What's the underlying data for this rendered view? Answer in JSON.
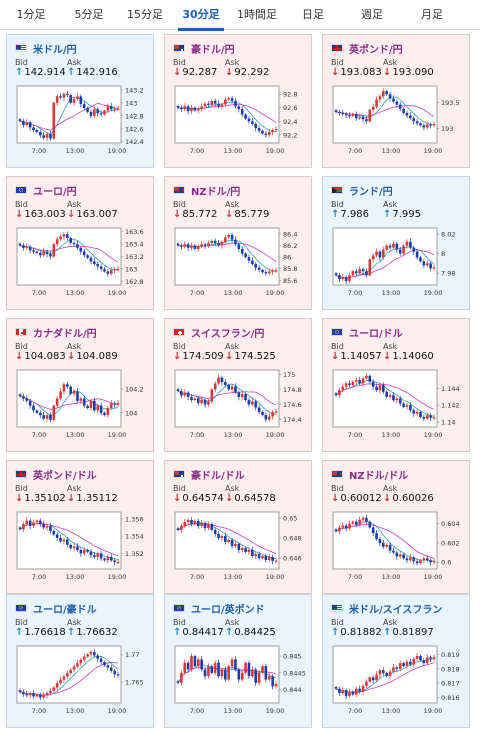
{
  "tabs": [
    {
      "label": "1分足",
      "active": false
    },
    {
      "label": "5分足",
      "active": false
    },
    {
      "label": "15分足",
      "active": false
    },
    {
      "label": "30分足",
      "active": true
    },
    {
      "label": "1時間足",
      "active": false
    },
    {
      "label": "日足",
      "active": false
    },
    {
      "label": "週足",
      "active": false
    },
    {
      "label": "月足",
      "active": false
    }
  ],
  "bid_label": "Bid",
  "ask_label": "Ask",
  "colors": {
    "up_bg": "#eaf4fc",
    "down_bg": "#fdeff0",
    "candle_up": "#d93838",
    "candle_down": "#1c3ca8",
    "ma1": "#30a0c0",
    "ma2": "#d040c8"
  },
  "cards": [
    {
      "pair": "米ドル/円",
      "flag": "us-flag-icon",
      "dir": "up",
      "bid": "142.914",
      "ask": "142.916",
      "chart_data": {
        "type": "candlestick",
        "x_ticks": [
          "7:00",
          "13:00",
          "19:00"
        ],
        "y_ticks": [
          "143.2",
          "143",
          "142.8",
          "142.6",
          "142.4"
        ],
        "ylim": [
          142.38,
          143.26
        ],
        "close": [
          142.72,
          142.66,
          142.7,
          142.62,
          142.58,
          142.55,
          142.5,
          142.46,
          142.52,
          142.45,
          143.0,
          143.1,
          143.08,
          143.14,
          143.12,
          143.0,
          143.06,
          143.1,
          142.98,
          142.92,
          142.86,
          142.8,
          142.9,
          142.84,
          142.82,
          142.88,
          142.95,
          142.9,
          142.91,
          142.914
        ]
      }
    },
    {
      "pair": "豪ドル/円",
      "flag": "au-flag-icon",
      "dir": "down",
      "bid": "92.287",
      "ask": "92.292",
      "chart_data": {
        "type": "candlestick",
        "x_ticks": [
          "7:00",
          "13:00",
          "19:00"
        ],
        "y_ticks": [
          "92.8",
          "92.6",
          "92.4",
          "92.2"
        ],
        "ylim": [
          92.08,
          92.92
        ],
        "close": [
          92.6,
          92.58,
          92.62,
          92.55,
          92.6,
          92.56,
          92.58,
          92.62,
          92.66,
          92.64,
          92.7,
          92.66,
          92.62,
          92.65,
          92.72,
          92.74,
          92.7,
          92.62,
          92.58,
          92.5,
          92.44,
          92.4,
          92.36,
          92.3,
          92.26,
          92.22,
          92.2,
          92.24,
          92.27,
          92.287
        ]
      }
    },
    {
      "pair": "英ポンド/円",
      "flag": "gb-flag-icon",
      "dir": "down",
      "bid": "193.083",
      "ask": "193.090",
      "chart_data": {
        "type": "candlestick",
        "x_ticks": [
          "7:00",
          "13:00",
          "19:00"
        ],
        "y_ticks": [
          "193.5",
          "193"
        ],
        "ylim": [
          192.72,
          193.82
        ],
        "close": [
          193.32,
          193.3,
          193.28,
          193.26,
          193.24,
          193.28,
          193.2,
          193.22,
          193.18,
          193.14,
          193.36,
          193.42,
          193.56,
          193.62,
          193.72,
          193.66,
          193.58,
          193.52,
          193.46,
          193.38,
          193.3,
          193.25,
          193.2,
          193.14,
          193.1,
          193.06,
          193.02,
          193.08,
          193.07,
          193.083
        ]
      }
    },
    {
      "pair": "ユーロ/円",
      "flag": "eu-flag-icon",
      "dir": "down",
      "bid": "163.003",
      "ask": "163.007",
      "chart_data": {
        "type": "candlestick",
        "x_ticks": [
          "7:00",
          "13:00",
          "19:00"
        ],
        "y_ticks": [
          "163.6",
          "163.4",
          "163.2",
          "163",
          "162.8"
        ],
        "ylim": [
          162.74,
          163.66
        ],
        "close": [
          163.38,
          163.34,
          163.36,
          163.3,
          163.28,
          163.26,
          163.22,
          163.28,
          163.24,
          163.2,
          163.4,
          163.48,
          163.52,
          163.56,
          163.5,
          163.42,
          163.4,
          163.34,
          163.28,
          163.22,
          163.18,
          163.12,
          163.08,
          163.04,
          163.0,
          162.96,
          162.92,
          162.98,
          163.0,
          163.003
        ]
      }
    },
    {
      "pair": "NZドル/円",
      "flag": "nz-flag-icon",
      "dir": "down",
      "bid": "85.772",
      "ask": "85.779",
      "chart_data": {
        "type": "candlestick",
        "x_ticks": [
          "7:00",
          "13:00",
          "19:00"
        ],
        "y_ticks": [
          "86.4",
          "86.2",
          "86",
          "85.8",
          "85.6"
        ],
        "ylim": [
          85.52,
          86.5
        ],
        "close": [
          86.2,
          86.18,
          86.22,
          86.16,
          86.2,
          86.14,
          86.18,
          86.22,
          86.2,
          86.24,
          86.28,
          86.24,
          86.2,
          86.26,
          86.34,
          86.38,
          86.3,
          86.22,
          86.14,
          86.06,
          86.0,
          85.94,
          85.88,
          85.82,
          85.78,
          85.74,
          85.72,
          85.75,
          85.77,
          85.772
        ]
      }
    },
    {
      "pair": "ランド/円",
      "flag": "za-flag-icon",
      "dir": "up",
      "bid": "7.986",
      "ask": "7.995",
      "chart_data": {
        "type": "candlestick",
        "x_ticks": [
          "7:00",
          "13:00",
          "19:00"
        ],
        "y_ticks": [
          "8.02",
          "8",
          "7.98"
        ],
        "ylim": [
          7.968,
          8.026
        ],
        "close": [
          7.978,
          7.974,
          7.976,
          7.972,
          7.978,
          7.982,
          7.98,
          7.984,
          7.982,
          7.978,
          7.994,
          7.998,
          8.002,
          7.996,
          8.004,
          8.008,
          8.006,
          8.01,
          8.004,
          8.0,
          8.008,
          8.012,
          8.006,
          8.002,
          7.996,
          7.992,
          7.988,
          7.99,
          7.985,
          7.986
        ]
      }
    },
    {
      "pair": "カナダドル/円",
      "flag": "ca-flag-icon",
      "dir": "down",
      "bid": "104.083",
      "ask": "104.089",
      "chart_data": {
        "type": "candlestick",
        "x_ticks": [
          "7:00",
          "13:00",
          "19:00"
        ],
        "y_ticks": [
          "104.2",
          "104"
        ],
        "ylim": [
          103.88,
          104.36
        ],
        "close": [
          104.14,
          104.12,
          104.1,
          104.06,
          104.02,
          104.0,
          103.98,
          103.95,
          103.98,
          103.94,
          104.06,
          104.12,
          104.18,
          104.24,
          104.22,
          104.16,
          104.18,
          104.1,
          104.12,
          104.06,
          104.04,
          104.1,
          104.02,
          104.06,
          104.0,
          103.98,
          104.04,
          104.08,
          104.07,
          104.083
        ]
      }
    },
    {
      "pair": "スイスフラン/円",
      "flag": "ch-flag-icon",
      "dir": "down",
      "bid": "174.509",
      "ask": "174.525",
      "chart_data": {
        "type": "candlestick",
        "x_ticks": [
          "7:00",
          "13:00",
          "19:00"
        ],
        "y_ticks": [
          "175",
          "174.8",
          "174.6",
          "174.4"
        ],
        "ylim": [
          174.3,
          175.06
        ],
        "close": [
          174.78,
          174.72,
          174.76,
          174.7,
          174.66,
          174.68,
          174.62,
          174.66,
          174.6,
          174.64,
          174.8,
          174.88,
          174.96,
          174.9,
          174.86,
          174.8,
          174.84,
          174.76,
          174.7,
          174.74,
          174.66,
          174.6,
          174.64,
          174.56,
          174.5,
          174.46,
          174.4,
          174.44,
          174.5,
          174.509
        ]
      }
    },
    {
      "pair": "ユーロ/ドル",
      "flag": "eu-flag-icon",
      "dir": "down",
      "bid": "1.14057",
      "ask": "1.14060",
      "chart_data": {
        "type": "candlestick",
        "x_ticks": [
          "7:00",
          "13:00",
          "19:00"
        ],
        "y_ticks": [
          "1.144",
          "1.142",
          "1.14"
        ],
        "ylim": [
          1.1394,
          1.1462
        ],
        "close": [
          1.1432,
          1.1438,
          1.1442,
          1.1446,
          1.1444,
          1.1448,
          1.145,
          1.1446,
          1.1452,
          1.1455,
          1.1448,
          1.1442,
          1.1438,
          1.1444,
          1.1436,
          1.143,
          1.1432,
          1.1426,
          1.1428,
          1.1422,
          1.1418,
          1.142,
          1.1414,
          1.141,
          1.1412,
          1.1406,
          1.1404,
          1.1408,
          1.1405,
          1.14057
        ]
      }
    },
    {
      "pair": "英ポンド/ドル",
      "flag": "gb-flag-icon",
      "dir": "down",
      "bid": "1.35102",
      "ask": "1.35112",
      "chart_data": {
        "type": "candlestick",
        "x_ticks": [
          "7:00",
          "13:00",
          "19:00"
        ],
        "y_ticks": [
          "1.356",
          "1.354",
          "1.352"
        ],
        "ylim": [
          1.3502,
          1.3568
        ],
        "close": [
          1.3548,
          1.3554,
          1.3558,
          1.3552,
          1.3556,
          1.3558,
          1.3554,
          1.355,
          1.3552,
          1.3546,
          1.3542,
          1.3538,
          1.3534,
          1.3536,
          1.353,
          1.3526,
          1.3528,
          1.3524,
          1.352,
          1.3524,
          1.3522,
          1.3518,
          1.3516,
          1.352,
          1.3514,
          1.3512,
          1.3516,
          1.3512,
          1.351,
          1.35102
        ]
      }
    },
    {
      "pair": "豪ドル/ドル",
      "flag": "au-flag-icon",
      "dir": "down",
      "bid": "0.64574",
      "ask": "0.64578",
      "chart_data": {
        "type": "candlestick",
        "x_ticks": [
          "7:00",
          "13:00",
          "19:00"
        ],
        "y_ticks": [
          "0.65",
          "0.648",
          "0.646"
        ],
        "ylim": [
          0.6449,
          0.6506
        ],
        "close": [
          0.6488,
          0.6492,
          0.6496,
          0.6498,
          0.6494,
          0.6497,
          0.6492,
          0.6495,
          0.649,
          0.6494,
          0.6488,
          0.6484,
          0.648,
          0.6482,
          0.6476,
          0.6478,
          0.6472,
          0.6474,
          0.6468,
          0.647,
          0.6466,
          0.6468,
          0.6462,
          0.6464,
          0.646,
          0.6462,
          0.6458,
          0.6461,
          0.6457,
          0.64574
        ]
      }
    },
    {
      "pair": "NZドル/ドル",
      "flag": "nz-flag-icon",
      "dir": "down",
      "bid": "0.60012",
      "ask": "0.60026",
      "chart_data": {
        "type": "candlestick",
        "x_ticks": [
          "7:00",
          "13:00",
          "19:00"
        ],
        "y_ticks": [
          "0.604",
          "0.602",
          "0.6"
        ],
        "ylim": [
          0.5993,
          0.6052
        ],
        "close": [
          0.6032,
          0.6036,
          0.6038,
          0.6035,
          0.604,
          0.6042,
          0.6039,
          0.6044,
          0.6046,
          0.6042,
          0.6036,
          0.603,
          0.6024,
          0.602,
          0.6016,
          0.6018,
          0.6012,
          0.601,
          0.6006,
          0.6008,
          0.6004,
          0.6002,
          0.6005,
          0.6001,
          0.5999,
          0.6002,
          0.6004,
          0.6002,
          0.6,
          0.60012
        ]
      }
    },
    {
      "pair": "ユーロ/豪ドル",
      "flag": "eu-flag-icon",
      "dir": "up",
      "bid": "1.76618",
      "ask": "1.76632",
      "chart_data": {
        "type": "candlestick",
        "x_ticks": [
          "7:00",
          "13:00",
          "19:00"
        ],
        "y_ticks": [
          "1.77",
          "1.765"
        ],
        "ylim": [
          1.7612,
          1.7715
        ],
        "close": [
          1.7632,
          1.7628,
          1.7626,
          1.763,
          1.7624,
          1.7627,
          1.7622,
          1.7626,
          1.763,
          1.7634,
          1.764,
          1.7648,
          1.7654,
          1.766,
          1.7666,
          1.7672,
          1.7678,
          1.7684,
          1.769,
          1.7696,
          1.77,
          1.7704,
          1.7698,
          1.7692,
          1.7686,
          1.768,
          1.7676,
          1.767,
          1.7664,
          1.76618
        ]
      }
    },
    {
      "pair": "ユーロ/英ポンド",
      "flag": "eu-flag-icon",
      "dir": "up",
      "bid": "0.84417",
      "ask": "0.84425",
      "chart_data": {
        "type": "candlestick",
        "x_ticks": [
          "7:00",
          "13:00",
          "19:00"
        ],
        "y_ticks": [
          "0.845",
          "0.8445",
          "0.844"
        ],
        "ylim": [
          0.8436,
          0.8453
        ],
        "close": [
          0.8442,
          0.8445,
          0.8448,
          0.8446,
          0.845,
          0.8447,
          0.8449,
          0.8446,
          0.8444,
          0.8447,
          0.8445,
          0.8448,
          0.8444,
          0.8446,
          0.8443,
          0.8447,
          0.8449,
          0.8446,
          0.8443,
          0.8445,
          0.8448,
          0.8444,
          0.8446,
          0.8442,
          0.8445,
          0.8447,
          0.8443,
          0.8444,
          0.8441,
          0.84417
        ]
      }
    },
    {
      "pair": "米ドル/スイスフラン",
      "flag": "us-flag-icon",
      "dir": "up",
      "bid": "0.81882",
      "ask": "0.81897",
      "chart_data": {
        "type": "candlestick",
        "x_ticks": [
          "7:00",
          "13:00",
          "19:00"
        ],
        "y_ticks": [
          "0.819",
          "0.818",
          "0.817",
          "0.816"
        ],
        "ylim": [
          0.8156,
          0.8196
        ],
        "close": [
          0.8166,
          0.8163,
          0.8165,
          0.8161,
          0.8164,
          0.8162,
          0.8166,
          0.8164,
          0.8168,
          0.8171,
          0.8174,
          0.8172,
          0.8176,
          0.8179,
          0.8177,
          0.8175,
          0.8178,
          0.8181,
          0.818,
          0.8184,
          0.8182,
          0.8185,
          0.8183,
          0.8187,
          0.8189,
          0.8186,
          0.8184,
          0.8188,
          0.8187,
          0.81882
        ]
      }
    }
  ]
}
